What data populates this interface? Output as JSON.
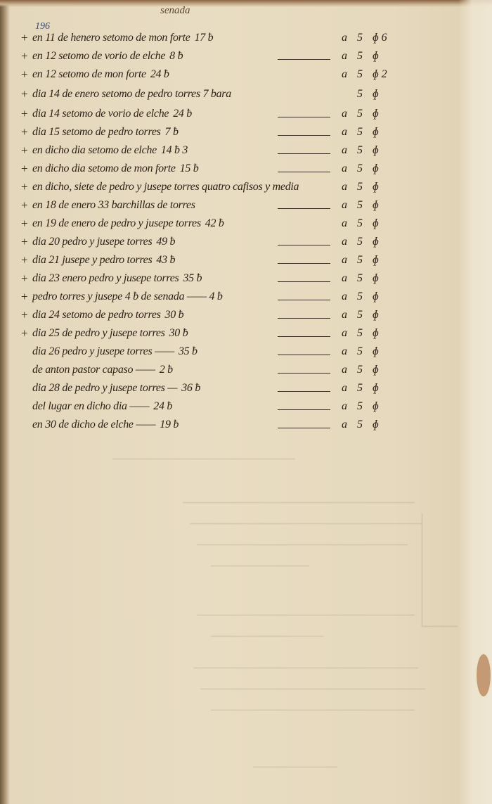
{
  "header": "senada",
  "folio": "196",
  "rows": [
    {
      "cross": "+",
      "text": "en 11 de henero setomo de mon forte",
      "amount": "17 ƀ",
      "dash": false,
      "a": "a",
      "five": "5",
      "sym": "ɸ 6"
    },
    {
      "cross": "+",
      "text": "en 12 setomo de vorio de elche",
      "amount": "8 ƀ",
      "dash": true,
      "a": "a",
      "five": "5",
      "sym": "ɸ"
    },
    {
      "cross": "+",
      "text": "en 12 setomo de mon forte",
      "amount": "24 ƀ",
      "dash": false,
      "a": "a",
      "five": "5",
      "sym": "ɸ 2"
    },
    {
      "cross": "+",
      "text": "dia 14 de enero setomo de pedro torres 7 bara",
      "amount": "",
      "dash": false,
      "a": "",
      "five": "5",
      "sym": "ɸ"
    },
    {
      "cross": "+",
      "text": "dia 14 setomo de vorio de elche",
      "amount": "24 ƀ",
      "dash": true,
      "a": "a",
      "five": "5",
      "sym": "ɸ"
    },
    {
      "cross": "+",
      "text": "dia 15 setomo de pedro torres",
      "amount": "7 ƀ",
      "dash": true,
      "a": "a",
      "five": "5",
      "sym": "ɸ"
    },
    {
      "cross": "+",
      "text": "en dicho dia setomo de elche",
      "amount": "14 ƀ 3",
      "dash": true,
      "a": "a",
      "five": "5",
      "sym": "ɸ"
    },
    {
      "cross": "+",
      "text": "en dicho dia setomo de mon forte",
      "amount": "15 ƀ",
      "dash": true,
      "a": "a",
      "five": "5",
      "sym": "ɸ"
    },
    {
      "cross": "+",
      "text": "en dicho, siete de pedro y jusepe torres quatro cafisos y media",
      "amount": "",
      "dash": false,
      "a": "a",
      "five": "5",
      "sym": "ɸ"
    },
    {
      "cross": "+",
      "text": "en 18 de enero 33 barchillas de torres",
      "amount": "",
      "dash": true,
      "a": "a",
      "five": "5",
      "sym": "ɸ"
    },
    {
      "cross": "+",
      "text": "en 19 de enero de pedro y jusepe torres",
      "amount": "42 ƀ",
      "dash": false,
      "a": "a",
      "five": "5",
      "sym": "ɸ"
    },
    {
      "cross": "+",
      "text": "dia 20 pedro y jusepe torres",
      "amount": "49 ƀ",
      "dash": true,
      "a": "a",
      "five": "5",
      "sym": "ɸ"
    },
    {
      "cross": "+",
      "text": "dia 21 jusepe y pedro torres",
      "amount": "43 ƀ",
      "dash": true,
      "a": "a",
      "five": "5",
      "sym": "ɸ"
    },
    {
      "cross": "+",
      "text": "dia 23 enero pedro y jusepe torres",
      "amount": "35 ƀ",
      "dash": true,
      "a": "a",
      "five": "5",
      "sym": "ɸ"
    },
    {
      "cross": "+",
      "text": "pedro torres y jusepe 4 ƀ de senada —— 4 ƀ",
      "amount": "",
      "dash": true,
      "a": "a",
      "five": "5",
      "sym": "ɸ"
    },
    {
      "cross": "+",
      "text": "dia 24 setomo de pedro torres",
      "amount": "30 ƀ",
      "dash": true,
      "a": "a",
      "five": "5",
      "sym": "ɸ"
    },
    {
      "cross": "+",
      "text": "dia 25 de pedro y jusepe torres",
      "amount": "30 ƀ",
      "dash": true,
      "a": "a",
      "five": "5",
      "sym": "ɸ"
    },
    {
      "cross": "",
      "text": "dia 26 pedro y jusepe torres ——",
      "amount": "35 ƀ",
      "dash": true,
      "a": "a",
      "five": "5",
      "sym": "ɸ"
    },
    {
      "cross": "",
      "text": "de anton pastor capaso ——",
      "amount": "2 ƀ",
      "dash": true,
      "a": "a",
      "five": "5",
      "sym": "ɸ"
    },
    {
      "cross": "",
      "text": "dia 28 de pedro y jusepe torres —",
      "amount": "36 ƀ",
      "dash": true,
      "a": "a",
      "five": "5",
      "sym": "ɸ"
    },
    {
      "cross": "",
      "text": "del lugar en dicho dia ——",
      "amount": "24 ƀ",
      "dash": true,
      "a": "a",
      "five": "5",
      "sym": "ɸ"
    },
    {
      "cross": "",
      "text": "en 30 de dicho de elche ——",
      "amount": "19 ƀ",
      "dash": true,
      "a": "a",
      "five": "5",
      "sym": "ɸ"
    }
  ]
}
